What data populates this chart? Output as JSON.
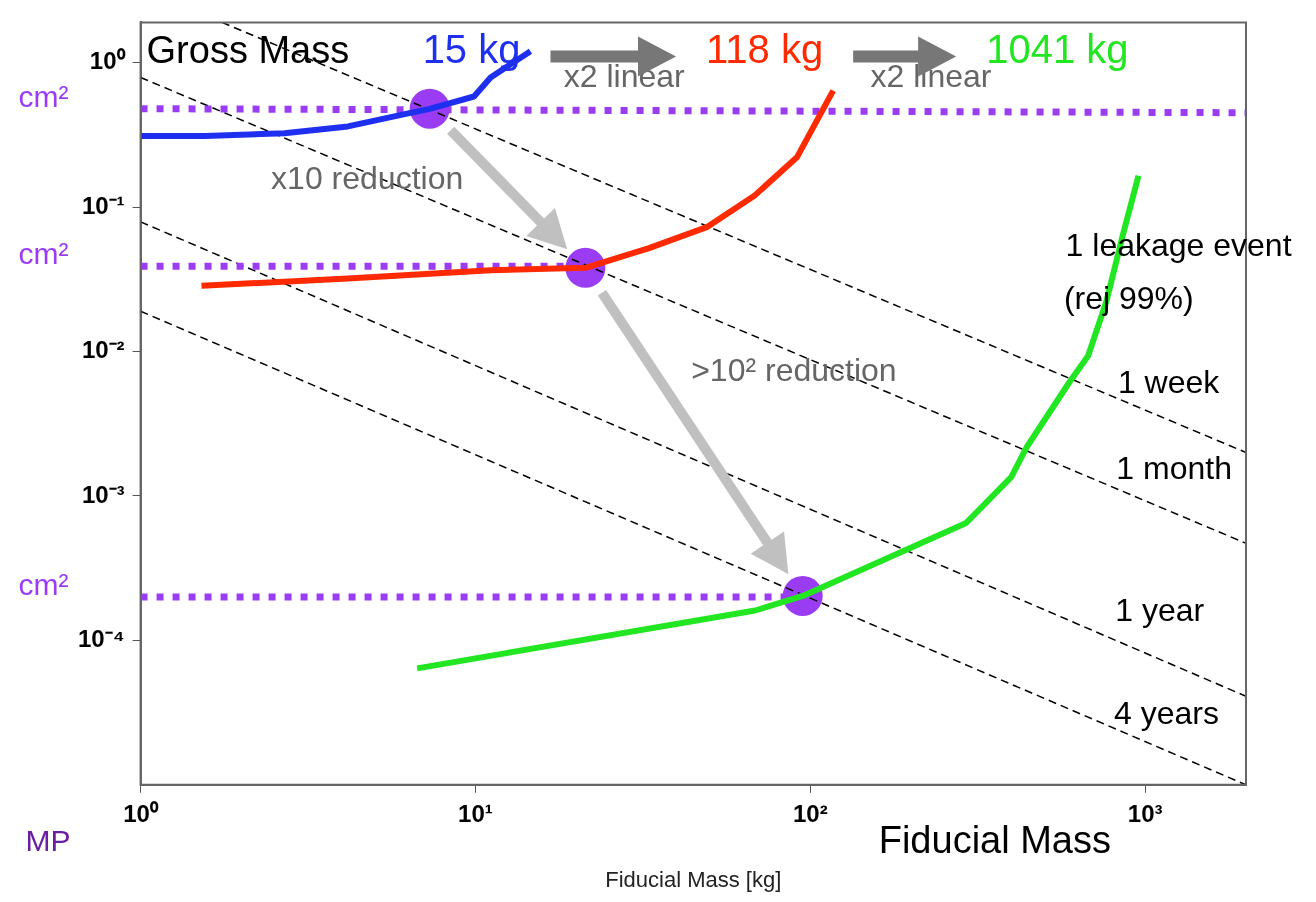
{
  "chart_data": {
    "type": "line",
    "xlabel": "Fiducial Mass [kg]",
    "log": "xy",
    "grid": false,
    "legend": false,
    "marker": "none",
    "xlim": [
      1,
      2000
    ],
    "xticks": [
      {
        "value": 1,
        "label": "10⁰"
      },
      {
        "value": 10,
        "label": "10¹"
      },
      {
        "value": 100,
        "label": "10²"
      },
      {
        "value": 1000,
        "label": "10³"
      }
    ],
    "ylim": [
      1e-05,
      1.9
    ],
    "yticks": [
      {
        "value": 0.0001,
        "label": "10⁻⁴"
      },
      {
        "value": 0.001,
        "label": "10⁻³"
      },
      {
        "value": 0.01,
        "label": "10⁻²"
      },
      {
        "value": 0.1,
        "label": "10⁻¹"
      },
      {
        "value": 1,
        "label": "10⁰"
      }
    ],
    "series": [
      {
        "name": "15 kg",
        "color": "#1f2ff0",
        "x": [
          1,
          1.56,
          2.69,
          4.16,
          6.4,
          7.25,
          9.9,
          11.1,
          14.6
        ],
        "values": [
          0.31,
          0.31,
          0.325,
          0.362,
          0.449,
          0.477,
          0.583,
          0.79,
          1.2
        ]
      },
      {
        "name": "118 kg",
        "color": "#ff2a00",
        "x": [
          1.52,
          4.16,
          11.1,
          21.3,
          33,
          49.3,
          68.4,
          91.2,
          105,
          117
        ],
        "values": [
          0.0285,
          0.032,
          0.0365,
          0.038,
          0.052,
          0.073,
          0.121,
          0.221,
          0.403,
          0.64
        ]
      },
      {
        "name": "1041 kg",
        "color": "#22e622",
        "x": [
          6.7,
          68.4,
          94.9,
          292,
          398,
          444,
          593,
          675,
          765,
          853,
          955
        ],
        "values": [
          6.4e-05,
          0.000161,
          0.000203,
          0.00065,
          0.00135,
          0.0022,
          0.0061,
          0.0093,
          0.022,
          0.061,
          0.165
        ]
      },
      {
        "name": "cm²",
        "color": "#9b3cf5",
        "line_style": "dotted",
        "x": [
          1,
          2000
        ],
        "values": [
          0.48,
          0.45
        ]
      },
      {
        "name": "cm²",
        "color": "#9b3cf5",
        "line_style": "dotted",
        "x": [
          1,
          21.3
        ],
        "values": [
          0.039,
          0.039
        ]
      },
      {
        "name": "cm²",
        "color": "#9b3cf5",
        "line_style": "dotted",
        "x": [
          1,
          94.9
        ],
        "values": [
          0.0002,
          0.0002
        ]
      },
      {
        "color": "#000000",
        "line_style": "dashed",
        "x": [
          1.75,
          2000
        ],
        "values": [
          1.9,
          0.002
        ]
      },
      {
        "color": "#000000",
        "line_style": "dashed",
        "x": [
          1,
          2000
        ],
        "values": [
          0.79,
          0.00047
        ]
      },
      {
        "color": "#000000",
        "line_style": "dashed",
        "x": [
          1,
          2000
        ],
        "values": [
          0.079,
          4.1e-05
        ]
      },
      {
        "color": "#000000",
        "line_style": "dashed",
        "x": [
          1,
          2000
        ],
        "values": [
          0.019,
          1e-05
        ]
      },
      {
        "type": "scatter",
        "marker": "circle",
        "color": "#9b3cf5",
        "x": [
          7.3,
          21.3,
          94.9
        ],
        "values": [
          0.48,
          0.038,
          0.000203
        ]
      }
    ],
    "annotations": [
      "Gross Mass",
      "Fiducial Mass",
      "MP",
      "x2 linear",
      "x2 linear",
      "x10 reduction",
      ">10² reduction",
      "1 leakage event",
      "(rej 99%)",
      "1 week",
      "1 month",
      "1 year",
      "4 years"
    ]
  }
}
